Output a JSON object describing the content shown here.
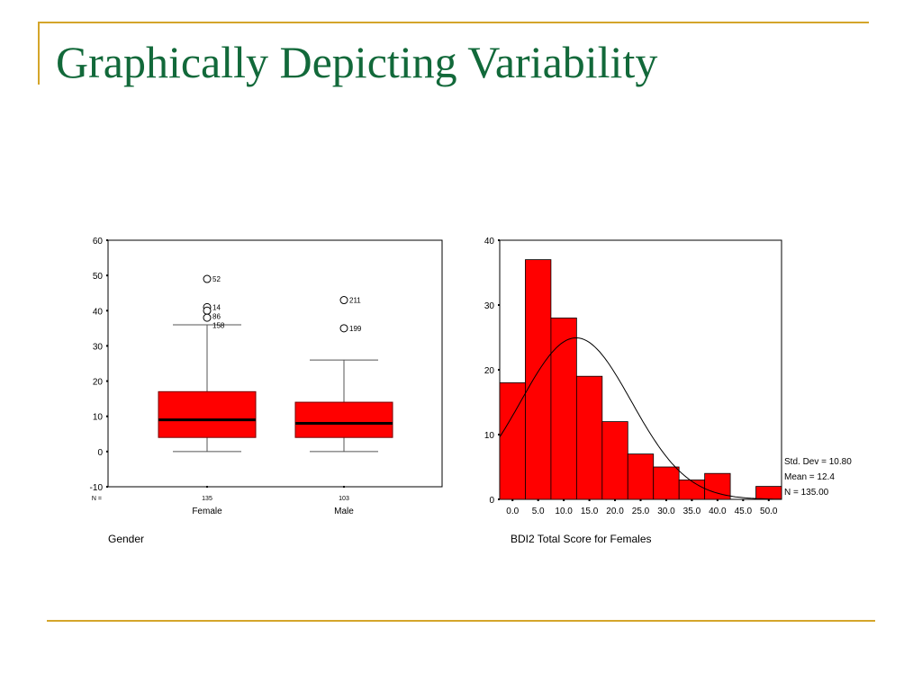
{
  "slide": {
    "title": "Graphically Depicting Variability"
  },
  "colors": {
    "accent_line": "#d4a52a",
    "title": "#12693a",
    "bar_fill": "#ff0000"
  },
  "chart_data": [
    {
      "type": "boxplot",
      "xlabel": "Gender",
      "ylim": [
        -10,
        60
      ],
      "yticks": [
        -10,
        0,
        10,
        20,
        30,
        40,
        50,
        60
      ],
      "n_label": "N =",
      "categories": [
        "Female",
        "Male"
      ],
      "n": [
        "135",
        "103"
      ],
      "boxes": [
        {
          "name": "Female",
          "whisker_low": 0,
          "q1": 4,
          "median": 9,
          "q3": 17,
          "whisker_high": 36,
          "outliers": [
            {
              "value": 49,
              "label": "52"
            },
            {
              "value": 41,
              "label": "14"
            },
            {
              "value": 40,
              "label": "86"
            },
            {
              "value": 38,
              "label": "158"
            }
          ]
        },
        {
          "name": "Male",
          "whisker_low": 0,
          "q1": 4,
          "median": 8,
          "q3": 14,
          "whisker_high": 26,
          "outliers": [
            {
              "value": 43,
              "label": "211"
            },
            {
              "value": 35,
              "label": "199"
            }
          ]
        }
      ]
    },
    {
      "type": "bar",
      "subtype": "histogram",
      "xlabel": "BDI2 Total Score for Females",
      "ylim": [
        0,
        40
      ],
      "yticks": [
        0,
        10,
        20,
        30,
        40
      ],
      "bin_width": 5,
      "categories": [
        "0.0",
        "5.0",
        "10.0",
        "15.0",
        "20.0",
        "25.0",
        "30.0",
        "35.0",
        "40.0",
        "45.0",
        "50.0"
      ],
      "bin_centers": [
        0,
        5,
        10,
        15,
        20,
        25,
        30,
        35,
        40,
        45,
        50
      ],
      "values": [
        18,
        37,
        28,
        19,
        12,
        7,
        5,
        3,
        4,
        0,
        2
      ],
      "normal_curve": {
        "mean": 12.4,
        "std": 10.8,
        "n": 135
      },
      "stats": [
        "Std. Dev = 10.80",
        "Mean = 12.4",
        "N = 135.00"
      ]
    }
  ]
}
